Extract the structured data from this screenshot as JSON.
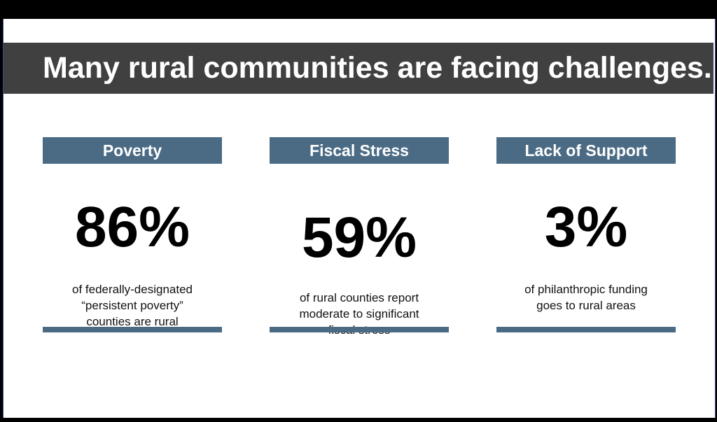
{
  "title": "Many rural communities are facing challenges.",
  "columns": [
    {
      "heading": "Poverty",
      "stat": "86%",
      "description": "of federally-designated\n“persistent poverty”\ncounties are rural"
    },
    {
      "heading": "Fiscal Stress",
      "stat": "59%",
      "description": "of rural counties report\nmoderate to significant\nfiscal stress"
    },
    {
      "heading": "Lack of Support",
      "stat": "3%",
      "description": "of philanthropic funding\ngoes to rural areas"
    }
  ],
  "colors": {
    "title_bar": "#404040",
    "accent": "#4b6b85",
    "background": "#ffffff"
  }
}
